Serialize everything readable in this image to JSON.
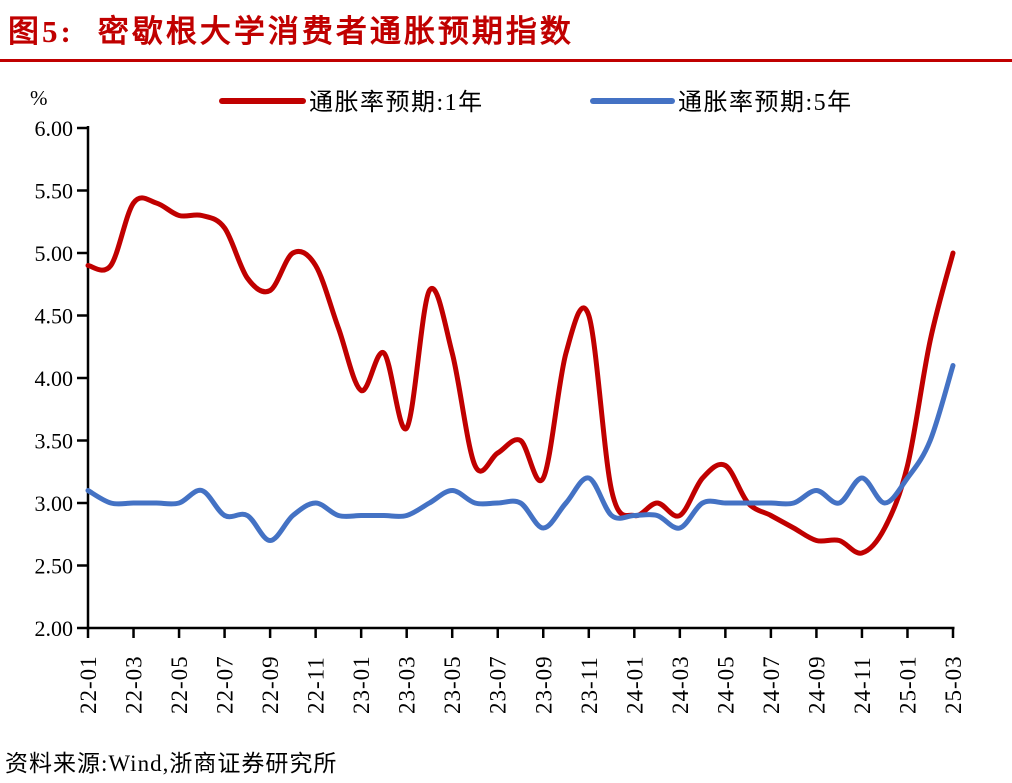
{
  "page": {
    "figure_label": "图5:",
    "title": "密歇根大学消费者通胀预期指数",
    "source": "资料来源:Wind,浙商证券研究所"
  },
  "colors": {
    "accent_red": "#C00000",
    "series_1y": "#C00000",
    "series_5y": "#4472C4",
    "axis": "#000000"
  },
  "chart_data": {
    "type": "line",
    "title": "密歇根大学消费者通胀预期指数",
    "unit_label": "%",
    "ylim": [
      2.0,
      6.0
    ],
    "ytick_step": 0.5,
    "ytick_labels": [
      "2.00",
      "2.50",
      "3.00",
      "3.50",
      "4.00",
      "4.50",
      "5.00",
      "5.50",
      "6.00"
    ],
    "x_tick_every": 2,
    "grid": false,
    "legend_position": "top",
    "smooth": true,
    "x": [
      "22-01",
      "22-02",
      "22-03",
      "22-04",
      "22-05",
      "22-06",
      "22-07",
      "22-08",
      "22-09",
      "22-10",
      "22-11",
      "22-12",
      "23-01",
      "23-02",
      "23-03",
      "23-04",
      "23-05",
      "23-06",
      "23-07",
      "23-08",
      "23-09",
      "23-10",
      "23-11",
      "23-12",
      "24-01",
      "24-02",
      "24-03",
      "24-04",
      "24-05",
      "24-06",
      "24-07",
      "24-08",
      "24-09",
      "24-10",
      "24-11",
      "24-12",
      "25-01",
      "25-02",
      "25-03"
    ],
    "series": [
      {
        "name": "通胀率预期:1年",
        "color": "#C00000",
        "values": [
          4.9,
          4.9,
          5.4,
          5.4,
          5.3,
          5.3,
          5.2,
          4.8,
          4.7,
          5.0,
          4.9,
          4.4,
          3.9,
          4.2,
          3.6,
          4.7,
          4.2,
          3.3,
          3.4,
          3.5,
          3.2,
          4.2,
          4.5,
          3.1,
          2.9,
          3.0,
          2.9,
          3.2,
          3.3,
          3.0,
          2.9,
          2.8,
          2.7,
          2.7,
          2.6,
          2.8,
          3.3,
          4.3,
          5.0
        ]
      },
      {
        "name": "通胀率预期:5年",
        "color": "#4472C4",
        "values": [
          3.1,
          3.0,
          3.0,
          3.0,
          3.0,
          3.1,
          2.9,
          2.9,
          2.7,
          2.9,
          3.0,
          2.9,
          2.9,
          2.9,
          2.9,
          3.0,
          3.1,
          3.0,
          3.0,
          3.0,
          2.8,
          3.0,
          3.2,
          2.9,
          2.9,
          2.9,
          2.8,
          3.0,
          3.0,
          3.0,
          3.0,
          3.0,
          3.1,
          3.0,
          3.2,
          3.0,
          3.2,
          3.5,
          4.1
        ]
      }
    ]
  }
}
